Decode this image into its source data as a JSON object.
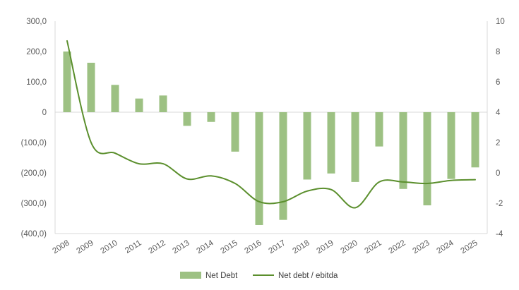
{
  "chart_data": {
    "type": "bar+line",
    "categories": [
      "2008",
      "2009",
      "2010",
      "2011",
      "2012",
      "2013",
      "2014",
      "2015",
      "2016",
      "2017",
      "2018",
      "2019",
      "2020",
      "2021",
      "2022",
      "2023",
      "2024",
      "2025"
    ],
    "series": [
      {
        "name": "Net Debt",
        "type": "bar",
        "axis": "left",
        "color": "#9dc183",
        "values": [
          200,
          163,
          90,
          45,
          55,
          -45,
          -32,
          -130,
          -372,
          -355,
          -222,
          -202,
          -230,
          -113,
          -253,
          -307,
          -220,
          -182
        ]
      },
      {
        "name": "Net debt / ebitda",
        "type": "line",
        "axis": "right",
        "color": "#5b8f2d",
        "values": [
          8.7,
          2.0,
          1.3,
          0.6,
          0.6,
          -0.4,
          -0.2,
          -0.7,
          -1.9,
          -1.9,
          -1.2,
          -1.1,
          -2.3,
          -0.6,
          -0.6,
          -0.7,
          -0.5,
          -0.45
        ]
      }
    ],
    "y_left": {
      "ylim": [
        -400,
        300
      ],
      "ticks": [
        300,
        200,
        100,
        0,
        -100,
        -200,
        -300,
        -400
      ],
      "tick_labels": [
        "300,0",
        "200,0",
        "100,0",
        "0",
        "(100,0)",
        "(200,0)",
        "(300,0)",
        "(400,0)"
      ]
    },
    "y_right": {
      "ylim": [
        -4,
        10
      ],
      "ticks": [
        10,
        8,
        6,
        4,
        2,
        0,
        -2,
        -4
      ],
      "tick_labels": [
        "10",
        "8",
        "6",
        "4",
        "2",
        "0",
        "-2",
        "-4"
      ]
    },
    "grid": false,
    "legend_position": "bottom",
    "axis_color": "#d9d9d9"
  }
}
